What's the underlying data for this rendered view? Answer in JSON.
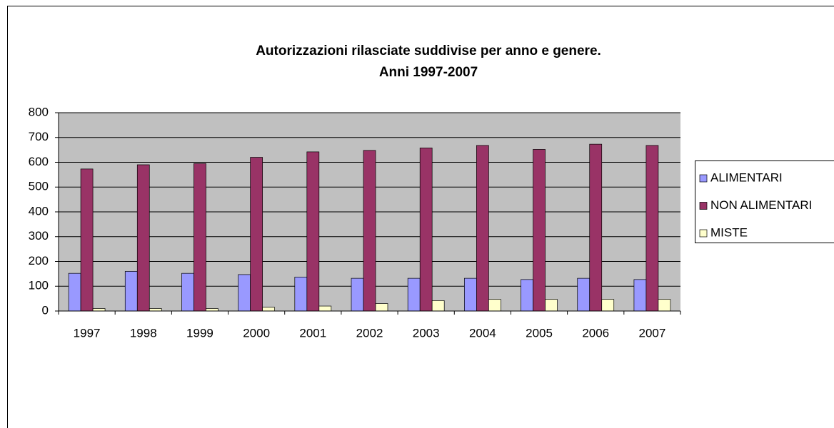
{
  "chart_data": {
    "type": "bar",
    "title": "Autorizzazioni rilasciate suddivise per anno e genere.",
    "subtitle": "Anni 1997-2007",
    "categories": [
      "1997",
      "1998",
      "1999",
      "2000",
      "2001",
      "2002",
      "2003",
      "2004",
      "2005",
      "2006",
      "2007"
    ],
    "series": [
      {
        "name": "ALIMENTARI",
        "color": "#9999ff",
        "values": [
          152,
          160,
          152,
          147,
          137,
          132,
          132,
          132,
          127,
          132,
          127
        ]
      },
      {
        "name": "NON ALIMENTARI",
        "color": "#993366",
        "values": [
          573,
          590,
          595,
          620,
          642,
          648,
          658,
          668,
          652,
          673,
          668
        ]
      },
      {
        "name": "MISTE",
        "color": "#ffffcc",
        "values": [
          10,
          10,
          10,
          15,
          20,
          30,
          42,
          47,
          47,
          47,
          47
        ]
      }
    ],
    "ylim": [
      0,
      800
    ],
    "yticks": [
      0,
      100,
      200,
      300,
      400,
      500,
      600,
      700,
      800
    ],
    "grid": true,
    "legend": "right"
  }
}
